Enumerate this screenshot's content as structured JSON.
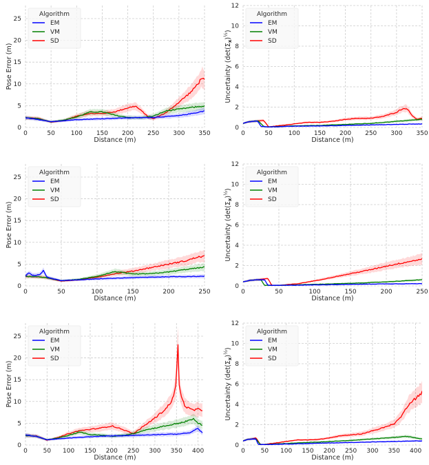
{
  "colors": {
    "EM": "#0000ff",
    "VM": "#008000",
    "SD": "#ff0000",
    "grid": "#cccccc",
    "legend_bg": "#f7f7f7"
  },
  "chart_data": [
    {
      "type": "line",
      "position": "top-left",
      "xlabel": "Distance (m)",
      "ylabel": "Pose Error (m)",
      "xlim": [
        0,
        350
      ],
      "ylim": [
        0,
        28
      ],
      "xticks": [
        0,
        50,
        100,
        150,
        200,
        250,
        300,
        350
      ],
      "yticks": [
        0,
        5,
        10,
        15,
        20,
        25
      ],
      "grid": true,
      "legend_title": "Algorithm",
      "legend_loc": "upper-left",
      "series": [
        {
          "name": "EM",
          "x": [
            0,
            25,
            50,
            100,
            150,
            200,
            250,
            300,
            330,
            350
          ],
          "y": [
            2.2,
            1.8,
            1.3,
            1.8,
            2.0,
            2.2,
            2.3,
            2.7,
            3.3,
            3.8
          ]
        },
        {
          "name": "VM",
          "x": [
            0,
            25,
            50,
            75,
            100,
            125,
            150,
            175,
            200,
            225,
            250,
            275,
            300,
            325,
            350
          ],
          "y": [
            2.2,
            2.0,
            1.3,
            1.7,
            2.4,
            3.5,
            3.6,
            2.8,
            2.3,
            2.2,
            2.6,
            3.8,
            4.2,
            4.6,
            4.9
          ]
        },
        {
          "name": "SD",
          "x": [
            0,
            25,
            50,
            75,
            100,
            125,
            150,
            175,
            200,
            215,
            230,
            240,
            250,
            275,
            300,
            325,
            340,
            345,
            350
          ],
          "y": [
            2.2,
            2.1,
            1.2,
            1.6,
            2.6,
            3.2,
            3.2,
            3.6,
            4.5,
            4.9,
            3.5,
            2.4,
            2.0,
            3.4,
            5.8,
            8.3,
            10.5,
            11.6,
            10.7
          ]
        }
      ]
    },
    {
      "type": "line",
      "position": "top-right",
      "xlabel": "Distance (m)",
      "ylabel": "Uncertainty (det(Σ_x)^(1/2))",
      "xlim": [
        0,
        350
      ],
      "ylim": [
        0,
        12
      ],
      "xticks": [
        0,
        50,
        100,
        150,
        200,
        250,
        300,
        350
      ],
      "yticks": [
        0,
        2,
        4,
        6,
        8,
        10,
        12
      ],
      "grid": true,
      "legend_title": "Algorithm",
      "legend_loc": "upper-left",
      "series": [
        {
          "name": "EM",
          "x": [
            0,
            10,
            20,
            28,
            35,
            50,
            100,
            150,
            200,
            250,
            300,
            350
          ],
          "y": [
            0.4,
            0.55,
            0.6,
            0.65,
            0.1,
            0.05,
            0.12,
            0.15,
            0.2,
            0.25,
            0.3,
            0.35
          ]
        },
        {
          "name": "VM",
          "x": [
            0,
            10,
            20,
            30,
            40,
            50,
            100,
            150,
            200,
            250,
            300,
            350
          ],
          "y": [
            0.4,
            0.55,
            0.6,
            0.65,
            0.1,
            0.05,
            0.15,
            0.2,
            0.3,
            0.4,
            0.6,
            0.8
          ]
        },
        {
          "name": "SD",
          "x": [
            0,
            10,
            20,
            30,
            40,
            50,
            75,
            100,
            125,
            150,
            175,
            200,
            225,
            250,
            275,
            300,
            310,
            320,
            330,
            340,
            350
          ],
          "y": [
            0.4,
            0.55,
            0.6,
            0.65,
            0.7,
            0.05,
            0.2,
            0.35,
            0.5,
            0.5,
            0.6,
            0.8,
            0.9,
            0.9,
            1.1,
            1.5,
            1.8,
            1.9,
            1.2,
            0.8,
            0.9
          ]
        }
      ]
    },
    {
      "type": "line",
      "position": "middle-left",
      "xlabel": "Distance (m)",
      "ylabel": "Pose Error (m)",
      "xlim": [
        0,
        250
      ],
      "ylim": [
        0,
        28
      ],
      "xticks": [
        0,
        50,
        100,
        150,
        200,
        250
      ],
      "yticks": [
        0,
        5,
        10,
        15,
        20,
        25
      ],
      "grid": true,
      "legend_title": "Algorithm",
      "legend_loc": "upper-left",
      "series": [
        {
          "name": "EM",
          "x": [
            0,
            5,
            10,
            20,
            25,
            30,
            50,
            100,
            150,
            200,
            250
          ],
          "y": [
            2.3,
            3.0,
            2.4,
            2.6,
            3.5,
            2.0,
            1.2,
            1.6,
            1.9,
            2.1,
            2.2
          ]
        },
        {
          "name": "VM",
          "x": [
            0,
            25,
            50,
            75,
            100,
            125,
            150,
            175,
            200,
            225,
            250
          ],
          "y": [
            2.2,
            2.0,
            1.2,
            1.5,
            2.2,
            3.3,
            2.7,
            2.8,
            3.2,
            3.8,
            4.3
          ]
        },
        {
          "name": "SD",
          "x": [
            0,
            25,
            50,
            75,
            100,
            125,
            150,
            175,
            200,
            225,
            240,
            250
          ],
          "y": [
            2.2,
            2.0,
            1.1,
            1.4,
            2.0,
            2.8,
            3.4,
            4.2,
            5.0,
            5.8,
            6.6,
            6.8
          ]
        }
      ]
    },
    {
      "type": "line",
      "position": "middle-right",
      "xlabel": "Distance (m)",
      "ylabel": "Uncertainty (det(Σ_x)^(1/2))",
      "xlim": [
        0,
        250
      ],
      "ylim": [
        0,
        12
      ],
      "xticks": [
        0,
        50,
        100,
        150,
        200,
        250
      ],
      "yticks": [
        0,
        2,
        4,
        6,
        8,
        10,
        12
      ],
      "grid": true,
      "legend_title": "Algorithm",
      "legend_loc": "upper-left",
      "series": [
        {
          "name": "EM",
          "x": [
            0,
            10,
            20,
            30,
            35,
            50,
            100,
            150,
            200,
            250
          ],
          "y": [
            0.4,
            0.55,
            0.6,
            0.6,
            0.05,
            0.05,
            0.1,
            0.15,
            0.2,
            0.22
          ]
        },
        {
          "name": "VM",
          "x": [
            0,
            10,
            20,
            25,
            30,
            50,
            100,
            150,
            200,
            250
          ],
          "y": [
            0.4,
            0.55,
            0.6,
            0.6,
            0.05,
            0.05,
            0.15,
            0.25,
            0.4,
            0.6
          ]
        },
        {
          "name": "SD",
          "x": [
            0,
            10,
            20,
            30,
            35,
            40,
            50,
            75,
            100,
            125,
            150,
            175,
            200,
            225,
            250
          ],
          "y": [
            0.4,
            0.55,
            0.6,
            0.7,
            0.7,
            0.05,
            0.05,
            0.2,
            0.5,
            0.85,
            1.2,
            1.55,
            1.95,
            2.3,
            2.65
          ]
        }
      ]
    },
    {
      "type": "line",
      "position": "bottom-left",
      "xlabel": "Distance (m)",
      "ylabel": "Pose Error (m)",
      "xlim": [
        0,
        415
      ],
      "ylim": [
        0,
        28
      ],
      "xticks": [
        0,
        50,
        100,
        150,
        200,
        250,
        300,
        350,
        400
      ],
      "yticks": [
        0,
        5,
        10,
        15,
        20,
        25
      ],
      "grid": true,
      "legend_title": "Algorithm",
      "legend_loc": "upper-left",
      "series": [
        {
          "name": "EM",
          "x": [
            0,
            25,
            50,
            100,
            150,
            200,
            250,
            300,
            350,
            380,
            400,
            410
          ],
          "y": [
            2.3,
            2.0,
            1.2,
            1.6,
            1.9,
            2.1,
            2.2,
            2.4,
            2.5,
            2.8,
            3.8,
            2.8
          ]
        },
        {
          "name": "VM",
          "x": [
            0,
            25,
            50,
            75,
            100,
            125,
            150,
            175,
            200,
            225,
            250,
            275,
            300,
            325,
            350,
            375,
            390,
            400,
            410
          ],
          "y": [
            2.2,
            2.0,
            1.2,
            1.6,
            2.2,
            3.0,
            2.4,
            2.3,
            2.0,
            2.2,
            2.6,
            3.4,
            3.9,
            4.4,
            4.9,
            5.5,
            6.0,
            5.0,
            4.6
          ]
        },
        {
          "name": "SD",
          "x": [
            0,
            25,
            50,
            75,
            100,
            125,
            150,
            175,
            200,
            225,
            250,
            275,
            300,
            325,
            340,
            345,
            350,
            353,
            355,
            360,
            365,
            370,
            380,
            390,
            400,
            410
          ],
          "y": [
            2.2,
            2.1,
            1.1,
            1.7,
            2.6,
            3.3,
            3.6,
            3.9,
            4.4,
            3.6,
            2.6,
            4.4,
            6.2,
            8.3,
            10.3,
            11.8,
            14.5,
            26.0,
            15.0,
            11.5,
            10.0,
            9.0,
            8.3,
            8.0,
            8.2,
            8.0
          ]
        }
      ]
    },
    {
      "type": "line",
      "position": "bottom-right",
      "xlabel": "Distance (m)",
      "ylabel": "Uncertainty (det(Σ_x)^(1/2))",
      "xlim": [
        0,
        415
      ],
      "ylim": [
        0,
        12
      ],
      "xticks": [
        0,
        50,
        100,
        150,
        200,
        250,
        300,
        350,
        400
      ],
      "yticks": [
        0,
        2,
        4,
        6,
        8,
        10,
        12
      ],
      "grid": true,
      "legend_title": "Algorithm",
      "legend_loc": "upper-left",
      "series": [
        {
          "name": "EM",
          "x": [
            0,
            10,
            20,
            30,
            35,
            50,
            100,
            150,
            200,
            250,
            300,
            350,
            400,
            415
          ],
          "y": [
            0.4,
            0.55,
            0.6,
            0.6,
            0.05,
            0.05,
            0.1,
            0.15,
            0.2,
            0.25,
            0.3,
            0.35,
            0.4,
            0.4
          ]
        },
        {
          "name": "VM",
          "x": [
            0,
            10,
            20,
            30,
            40,
            50,
            100,
            150,
            200,
            250,
            300,
            350,
            380,
            400,
            415
          ],
          "y": [
            0.4,
            0.55,
            0.6,
            0.6,
            0.05,
            0.05,
            0.15,
            0.25,
            0.35,
            0.45,
            0.6,
            0.75,
            0.85,
            0.7,
            0.6
          ]
        },
        {
          "name": "SD",
          "x": [
            0,
            10,
            20,
            30,
            40,
            50,
            75,
            100,
            125,
            150,
            175,
            200,
            225,
            250,
            275,
            300,
            325,
            350,
            360,
            370,
            380,
            390,
            400,
            410,
            415
          ],
          "y": [
            0.4,
            0.55,
            0.6,
            0.7,
            0.05,
            0.05,
            0.2,
            0.35,
            0.5,
            0.5,
            0.55,
            0.7,
            0.9,
            1.0,
            1.1,
            1.4,
            1.7,
            2.1,
            2.5,
            3.0,
            3.8,
            4.3,
            4.6,
            5.0,
            5.2
          ]
        }
      ]
    }
  ]
}
